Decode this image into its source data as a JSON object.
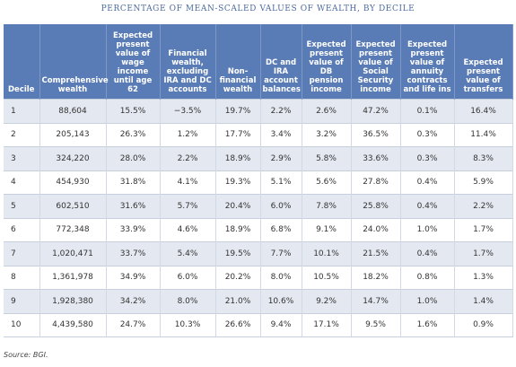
{
  "title": "PERCENTAGE OF MEAN-SCALED VALUES OF WEALTH, BY DECILE",
  "table": {
    "header": [
      "Decile",
      "Comprehensive wealth",
      "Expected present value of wage income until age 62",
      "Financial wealth, excluding IRA and DC accounts",
      "Non-financial wealth",
      "DC and IRA account balances",
      "Expected present value of DB pension income",
      "Expected present value of Social Security income",
      "Expected present value of annuity contracts and life ins",
      "Expected present value of transfers"
    ],
    "rows": [
      [
        "1",
        "88,604",
        "15.5%",
        "−3.5%",
        "19.7%",
        "2.2%",
        "2.6%",
        "47.2%",
        "0.1%",
        "16.4%"
      ],
      [
        "2",
        "205,143",
        "26.3%",
        "1.2%",
        "17.7%",
        "3.4%",
        "3.2%",
        "36.5%",
        "0.3%",
        "11.4%"
      ],
      [
        "3",
        "324,220",
        "28.0%",
        "2.2%",
        "18.9%",
        "2.9%",
        "5.8%",
        "33.6%",
        "0.3%",
        "8.3%"
      ],
      [
        "4",
        "454,930",
        "31.8%",
        "4.1%",
        "19.3%",
        "5.1%",
        "5.6%",
        "27.8%",
        "0.4%",
        "5.9%"
      ],
      [
        "5",
        "602,510",
        "31.6%",
        "5.7%",
        "20.4%",
        "6.0%",
        "7.8%",
        "25.8%",
        "0.4%",
        "2.2%"
      ],
      [
        "6",
        "772,348",
        "33.9%",
        "4.6%",
        "18.9%",
        "6.8%",
        "9.1%",
        "24.0%",
        "1.0%",
        "1.7%"
      ],
      [
        "7",
        "1,020,471",
        "33.7%",
        "5.4%",
        "19.5%",
        "7.7%",
        "10.1%",
        "21.5%",
        "0.4%",
        "1.7%"
      ],
      [
        "8",
        "1,361,978",
        "34.9%",
        "6.0%",
        "20.2%",
        "8.0%",
        "10.5%",
        "18.2%",
        "0.8%",
        "1.3%"
      ],
      [
        "9",
        "1,928,380",
        "34.2%",
        "8.0%",
        "21.0%",
        "10.6%",
        "9.2%",
        "14.7%",
        "1.0%",
        "1.4%"
      ],
      [
        "10",
        "4,439,580",
        "24.7%",
        "10.3%",
        "26.6%",
        "9.4%",
        "17.1%",
        "9.5%",
        "1.6%",
        "0.9%"
      ]
    ]
  },
  "source": "Source: BGI."
}
